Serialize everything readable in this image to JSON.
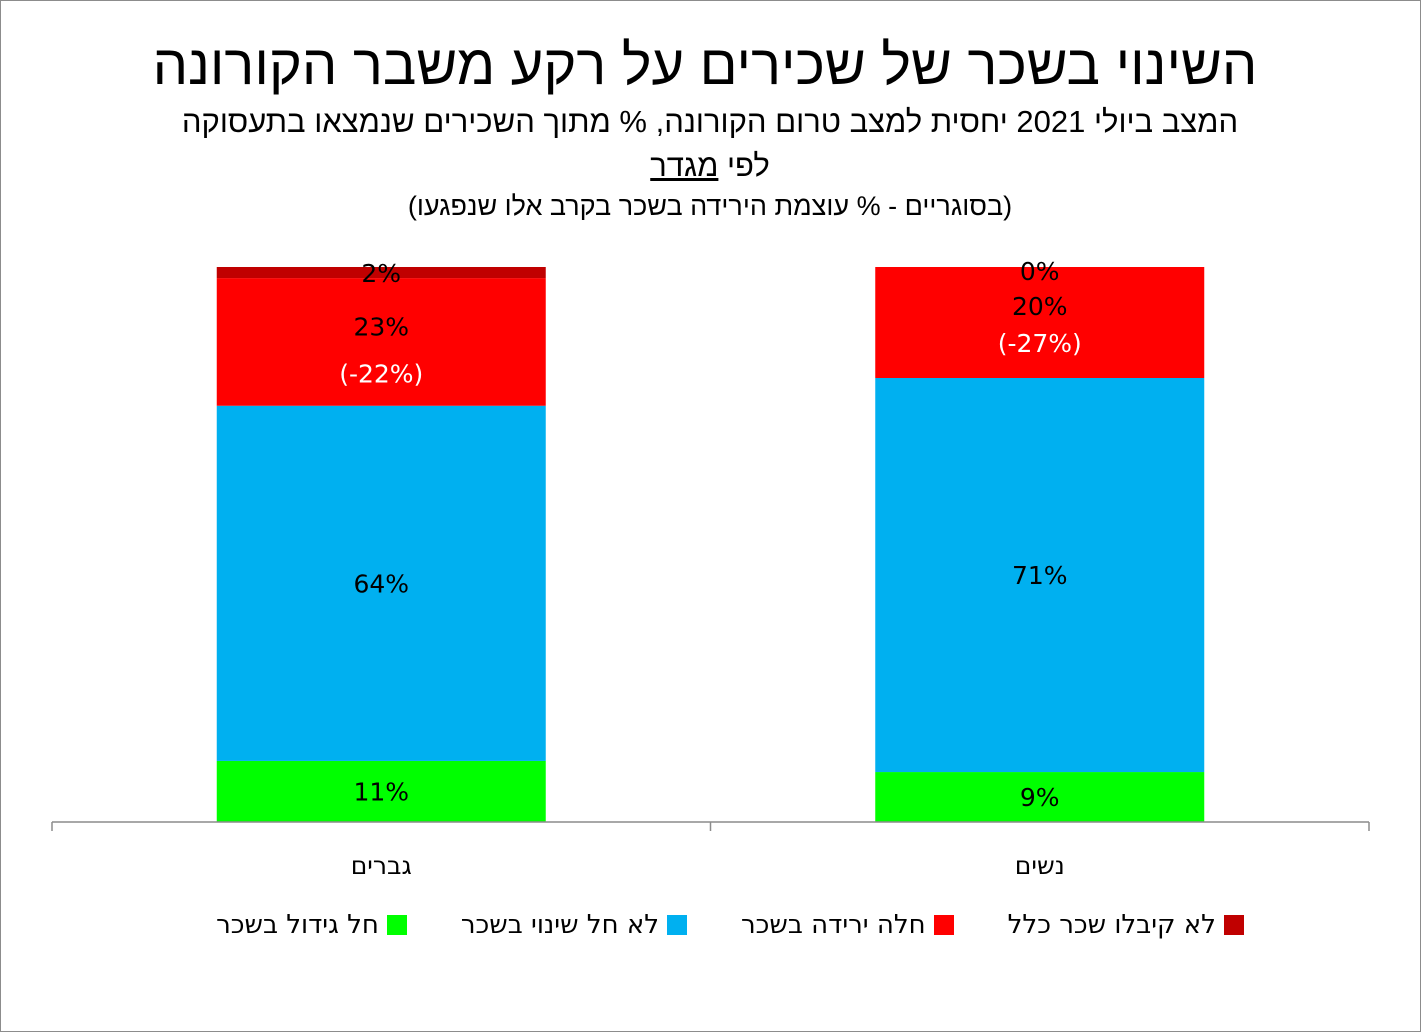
{
  "title": "השינוי בשכר של שכירים על רקע משבר הקורונה",
  "subtitle_line1": "המצב ביולי 2021 יחסית למצב טרום הקורונה, % מתוך השכירים שנמצאו בתעסוקה",
  "subtitle_line2_prefix": "לפי ",
  "subtitle_line2_underlined": "מגדר",
  "subtitle_line3": "(בסוגריים - % עוצמת הירידה בשכר בקרב אלו שנפגעו)",
  "chart_data": {
    "type": "bar",
    "stacked": true,
    "categories": [
      "נשים",
      "גברים"
    ],
    "series": [
      {
        "name": "חל גידול בשכר",
        "color": "#00ff00",
        "values": [
          9,
          11
        ],
        "labels": [
          "9%",
          "11%"
        ]
      },
      {
        "name": "לא חל שינוי בשכר",
        "color": "#00b0f0",
        "values": [
          71,
          64
        ],
        "labels": [
          "71%",
          "64%"
        ]
      },
      {
        "name": "חלה ירידה בשכר",
        "color": "#ff0000",
        "values": [
          20,
          23
        ],
        "labels": [
          "20%",
          "23%"
        ],
        "sublabels": [
          "(-27%)",
          "(-22%)"
        ]
      },
      {
        "name": "לא קיבלו שכר כלל",
        "color": "#c00000",
        "values": [
          0,
          2
        ],
        "labels": [
          "0%",
          "2%"
        ]
      }
    ],
    "ylim": [
      0,
      100
    ],
    "legend_position": "bottom",
    "grid": false
  }
}
